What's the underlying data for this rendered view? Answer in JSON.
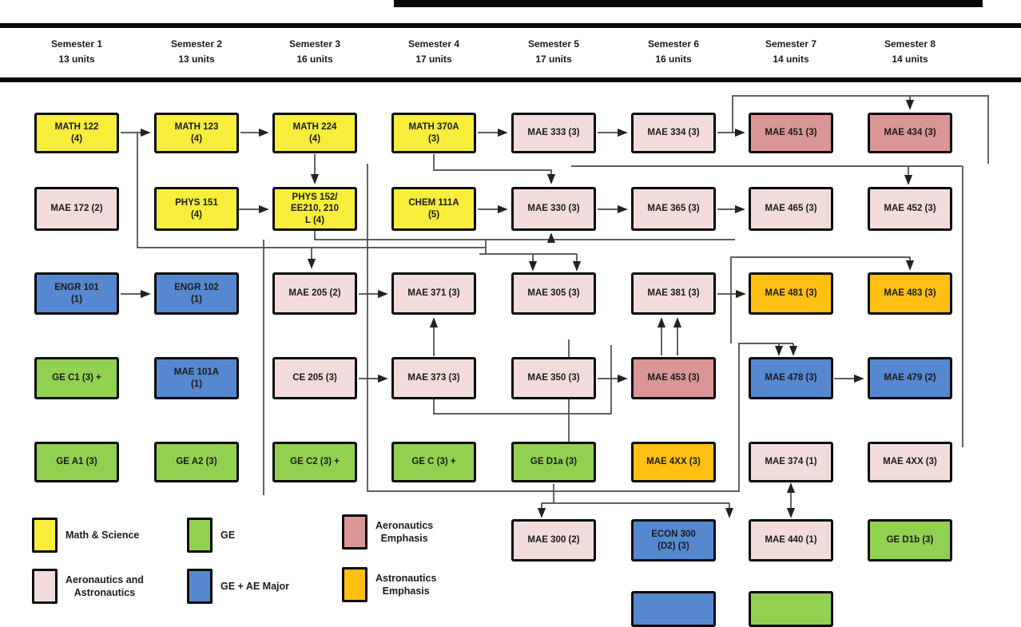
{
  "header": {
    "semesters": [
      {
        "name": "Semester 1",
        "units": "13 units"
      },
      {
        "name": "Semester 2",
        "units": "13 units"
      },
      {
        "name": "Semester 3",
        "units": "16 units"
      },
      {
        "name": "Semester 4",
        "units": "17 units"
      },
      {
        "name": "Semester 5",
        "units": "17 units"
      },
      {
        "name": "Semester 6",
        "units": "16 units"
      },
      {
        "name": "Semester 7",
        "units": "14 units"
      },
      {
        "name": "Semester 8",
        "units": "14 units"
      }
    ]
  },
  "colors": {
    "yellow": "#F6EE3A",
    "green": "#92D050",
    "pink": "#F2DCDB",
    "salmon": "#D99694",
    "blue": "#5588CF",
    "orange": "#FFC013"
  },
  "courses": [
    {
      "lines": [
        "MATH 122",
        "(4)"
      ],
      "color": "yellow",
      "col": 1,
      "row": 1
    },
    {
      "lines": [
        "MATH 123",
        "(4)"
      ],
      "color": "yellow",
      "col": 2,
      "row": 1
    },
    {
      "lines": [
        "MATH 224",
        "(4)"
      ],
      "color": "yellow",
      "col": 3,
      "row": 1
    },
    {
      "lines": [
        "MATH 370A",
        "(3)"
      ],
      "color": "yellow",
      "col": 4,
      "row": 1
    },
    {
      "lines": [
        "MAE 333 (3)"
      ],
      "color": "pink",
      "col": 5,
      "row": 1
    },
    {
      "lines": [
        "MAE 334 (3)"
      ],
      "color": "pink",
      "col": 6,
      "row": 1
    },
    {
      "lines": [
        "MAE 451 (3)"
      ],
      "color": "salmon",
      "col": 7,
      "row": 1
    },
    {
      "lines": [
        "MAE 434 (3)"
      ],
      "color": "salmon",
      "col": 8,
      "row": 1
    },
    {
      "lines": [
        "MAE 172 (2)"
      ],
      "color": "pink",
      "col": 1,
      "row": 2
    },
    {
      "lines": [
        "PHYS 151",
        "(4)"
      ],
      "color": "yellow",
      "col": 2,
      "row": 2
    },
    {
      "lines": [
        "PHYS 152/",
        "EE210, 210",
        "L (4)"
      ],
      "color": "yellow",
      "col": 3,
      "row": 2
    },
    {
      "lines": [
        "CHEM 111A",
        "(5)"
      ],
      "color": "yellow",
      "col": 4,
      "row": 2
    },
    {
      "lines": [
        "MAE 330 (3)"
      ],
      "color": "pink",
      "col": 5,
      "row": 2
    },
    {
      "lines": [
        "MAE 365 (3)"
      ],
      "color": "pink",
      "col": 6,
      "row": 2
    },
    {
      "lines": [
        "MAE 465 (3)"
      ],
      "color": "pink",
      "col": 7,
      "row": 2
    },
    {
      "lines": [
        "MAE 452 (3)"
      ],
      "color": "pink",
      "col": 8,
      "row": 2
    },
    {
      "lines": [
        "ENGR 101",
        "(1)"
      ],
      "color": "blue",
      "col": 1,
      "row": 3
    },
    {
      "lines": [
        "ENGR 102",
        "(1)"
      ],
      "color": "blue",
      "col": 2,
      "row": 3
    },
    {
      "lines": [
        "MAE 205 (2)"
      ],
      "color": "pink",
      "col": 3,
      "row": 3
    },
    {
      "lines": [
        "MAE 371 (3)"
      ],
      "color": "pink",
      "col": 4,
      "row": 3
    },
    {
      "lines": [
        "MAE 305 (3)"
      ],
      "color": "pink",
      "col": 5,
      "row": 3
    },
    {
      "lines": [
        "MAE 381 (3)"
      ],
      "color": "pink",
      "col": 6,
      "row": 3
    },
    {
      "lines": [
        "MAE 481 (3)"
      ],
      "color": "orange",
      "col": 7,
      "row": 3
    },
    {
      "lines": [
        "MAE 483 (3)"
      ],
      "color": "orange",
      "col": 8,
      "row": 3
    },
    {
      "lines": [
        "GE C1 (3) +"
      ],
      "color": "green",
      "col": 1,
      "row": 4
    },
    {
      "lines": [
        "MAE 101A",
        "(1)"
      ],
      "color": "blue",
      "col": 2,
      "row": 4
    },
    {
      "lines": [
        "CE 205 (3)"
      ],
      "color": "pink",
      "col": 3,
      "row": 4
    },
    {
      "lines": [
        "MAE 373 (3)"
      ],
      "color": "pink",
      "col": 4,
      "row": 4
    },
    {
      "lines": [
        "MAE 350 (3)"
      ],
      "color": "pink",
      "col": 5,
      "row": 4
    },
    {
      "lines": [
        "MAE 453 (3)"
      ],
      "color": "salmon",
      "col": 6,
      "row": 4
    },
    {
      "lines": [
        "MAE 478 (3)"
      ],
      "color": "blue",
      "col": 7,
      "row": 4
    },
    {
      "lines": [
        "MAE 479 (2)"
      ],
      "color": "blue",
      "col": 8,
      "row": 4
    },
    {
      "lines": [
        "GE A1 (3)"
      ],
      "color": "green",
      "col": 1,
      "row": 5
    },
    {
      "lines": [
        "GE A2 (3)"
      ],
      "color": "green",
      "col": 2,
      "row": 5
    },
    {
      "lines": [
        "GE C2 (3) +"
      ],
      "color": "green",
      "col": 3,
      "row": 5
    },
    {
      "lines": [
        "GE C (3) +"
      ],
      "color": "green",
      "col": 4,
      "row": 5
    },
    {
      "lines": [
        "GE D1a (3)"
      ],
      "color": "green",
      "col": 5,
      "row": 5
    },
    {
      "lines": [
        "MAE 4XX (3)"
      ],
      "color": "orange",
      "col": 6,
      "row": 5
    },
    {
      "lines": [
        "MAE 374 (1)"
      ],
      "color": "pink",
      "col": 7,
      "row": 5
    },
    {
      "lines": [
        "MAE 4XX (3)"
      ],
      "color": "pink",
      "col": 8,
      "row": 5
    },
    {
      "lines": [
        "MAE 300 (2)"
      ],
      "color": "pink",
      "col": 5,
      "row": 6
    },
    {
      "lines": [
        "ECON 300",
        "(D2) (3)"
      ],
      "color": "blue",
      "col": 6,
      "row": 6
    },
    {
      "lines": [
        "MAE 440 (1)"
      ],
      "color": "pink",
      "col": 7,
      "row": 6
    },
    {
      "lines": [
        "GE D1b (3)"
      ],
      "color": "green",
      "col": 8,
      "row": 6
    },
    {
      "lines": [
        ""
      ],
      "color": "blue",
      "col": 6,
      "row": 7
    },
    {
      "lines": [
        ""
      ],
      "color": "green",
      "col": 7,
      "row": 7
    }
  ],
  "legend": [
    {
      "label": "Math & Science",
      "color": "yellow"
    },
    {
      "label": "GE",
      "color": "green"
    },
    {
      "label": "Aeronautics\nEmphasis",
      "color": "salmon"
    },
    {
      "label": "Aeronautics and\nAstronautics",
      "color": "pink"
    },
    {
      "label": "GE + AE Major",
      "color": "blue"
    },
    {
      "label": "Astronautics\nEmphasis",
      "color": "orange"
    }
  ]
}
